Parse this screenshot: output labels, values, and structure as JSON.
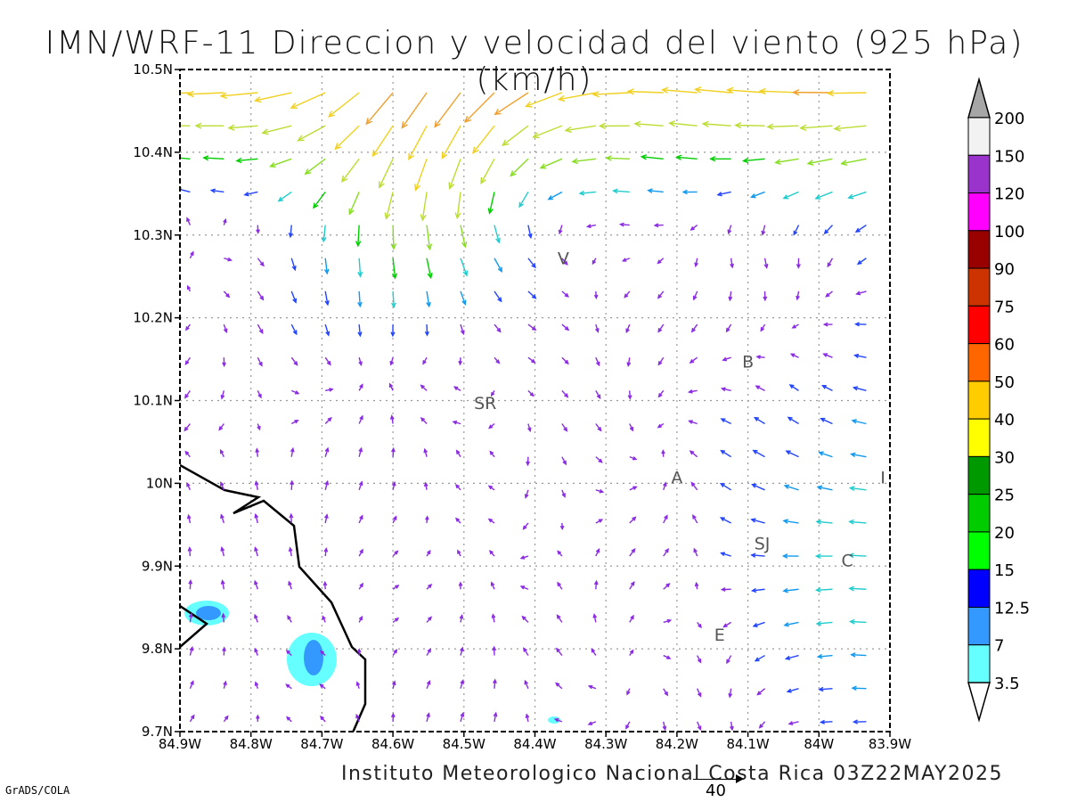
{
  "title": "IMN/WRF-11 Direccion y velocidad del viento (925 hPa)(km/h)",
  "footer": "Instituto Meteorologico Nacional Costa Rica 03Z22MAY2025",
  "credit": "GrADS/COLA",
  "reference_vector_label": "40",
  "map": {
    "lon_range": [
      -84.9,
      -83.9
    ],
    "lat_range": [
      9.7,
      10.5
    ],
    "x_tick_labels": [
      "84.9W",
      "84.8W",
      "84.7W",
      "84.6W",
      "84.5W",
      "84.4W",
      "84.3W",
      "84.2W",
      "84.1W",
      "84W",
      "83.9W"
    ],
    "y_tick_labels": [
      "10.5N",
      "10.4N",
      "10.3N",
      "10.2N",
      "10.1N",
      "10N",
      "9.9N",
      "9.8N",
      "9.7N"
    ],
    "gridlines": "dotted",
    "site_labels": [
      {
        "text": "V",
        "lon": -84.36,
        "lat": 10.265
      },
      {
        "text": "SR",
        "lon": -84.47,
        "lat": 10.09
      },
      {
        "text": "B",
        "lon": -84.1,
        "lat": 10.14
      },
      {
        "text": "A",
        "lon": -84.2,
        "lat": 10.0
      },
      {
        "text": "SJ",
        "lon": -84.08,
        "lat": 9.92
      },
      {
        "text": "C",
        "lon": -83.96,
        "lat": 9.9
      },
      {
        "text": "E",
        "lon": -84.14,
        "lat": 9.81
      },
      {
        "text": "I",
        "lon": -83.91,
        "lat": 10.0
      }
    ]
  },
  "colorbar": {
    "labels": [
      "200",
      "150",
      "120",
      "100",
      "90",
      "75",
      "60",
      "50",
      "40",
      "30",
      "25",
      "20",
      "15",
      "12.5",
      "7",
      "3.5"
    ],
    "colors": [
      "#a6a6a6",
      "#f2f2f2",
      "#9933cc",
      "#ff00ff",
      "#990000",
      "#cc3300",
      "#ff0000",
      "#ff6600",
      "#ffcc00",
      "#ffff00",
      "#009900",
      "#00cc00",
      "#00ff00",
      "#0000ff",
      "#3399ff",
      "#66ffff",
      "#ffffff"
    ]
  }
}
